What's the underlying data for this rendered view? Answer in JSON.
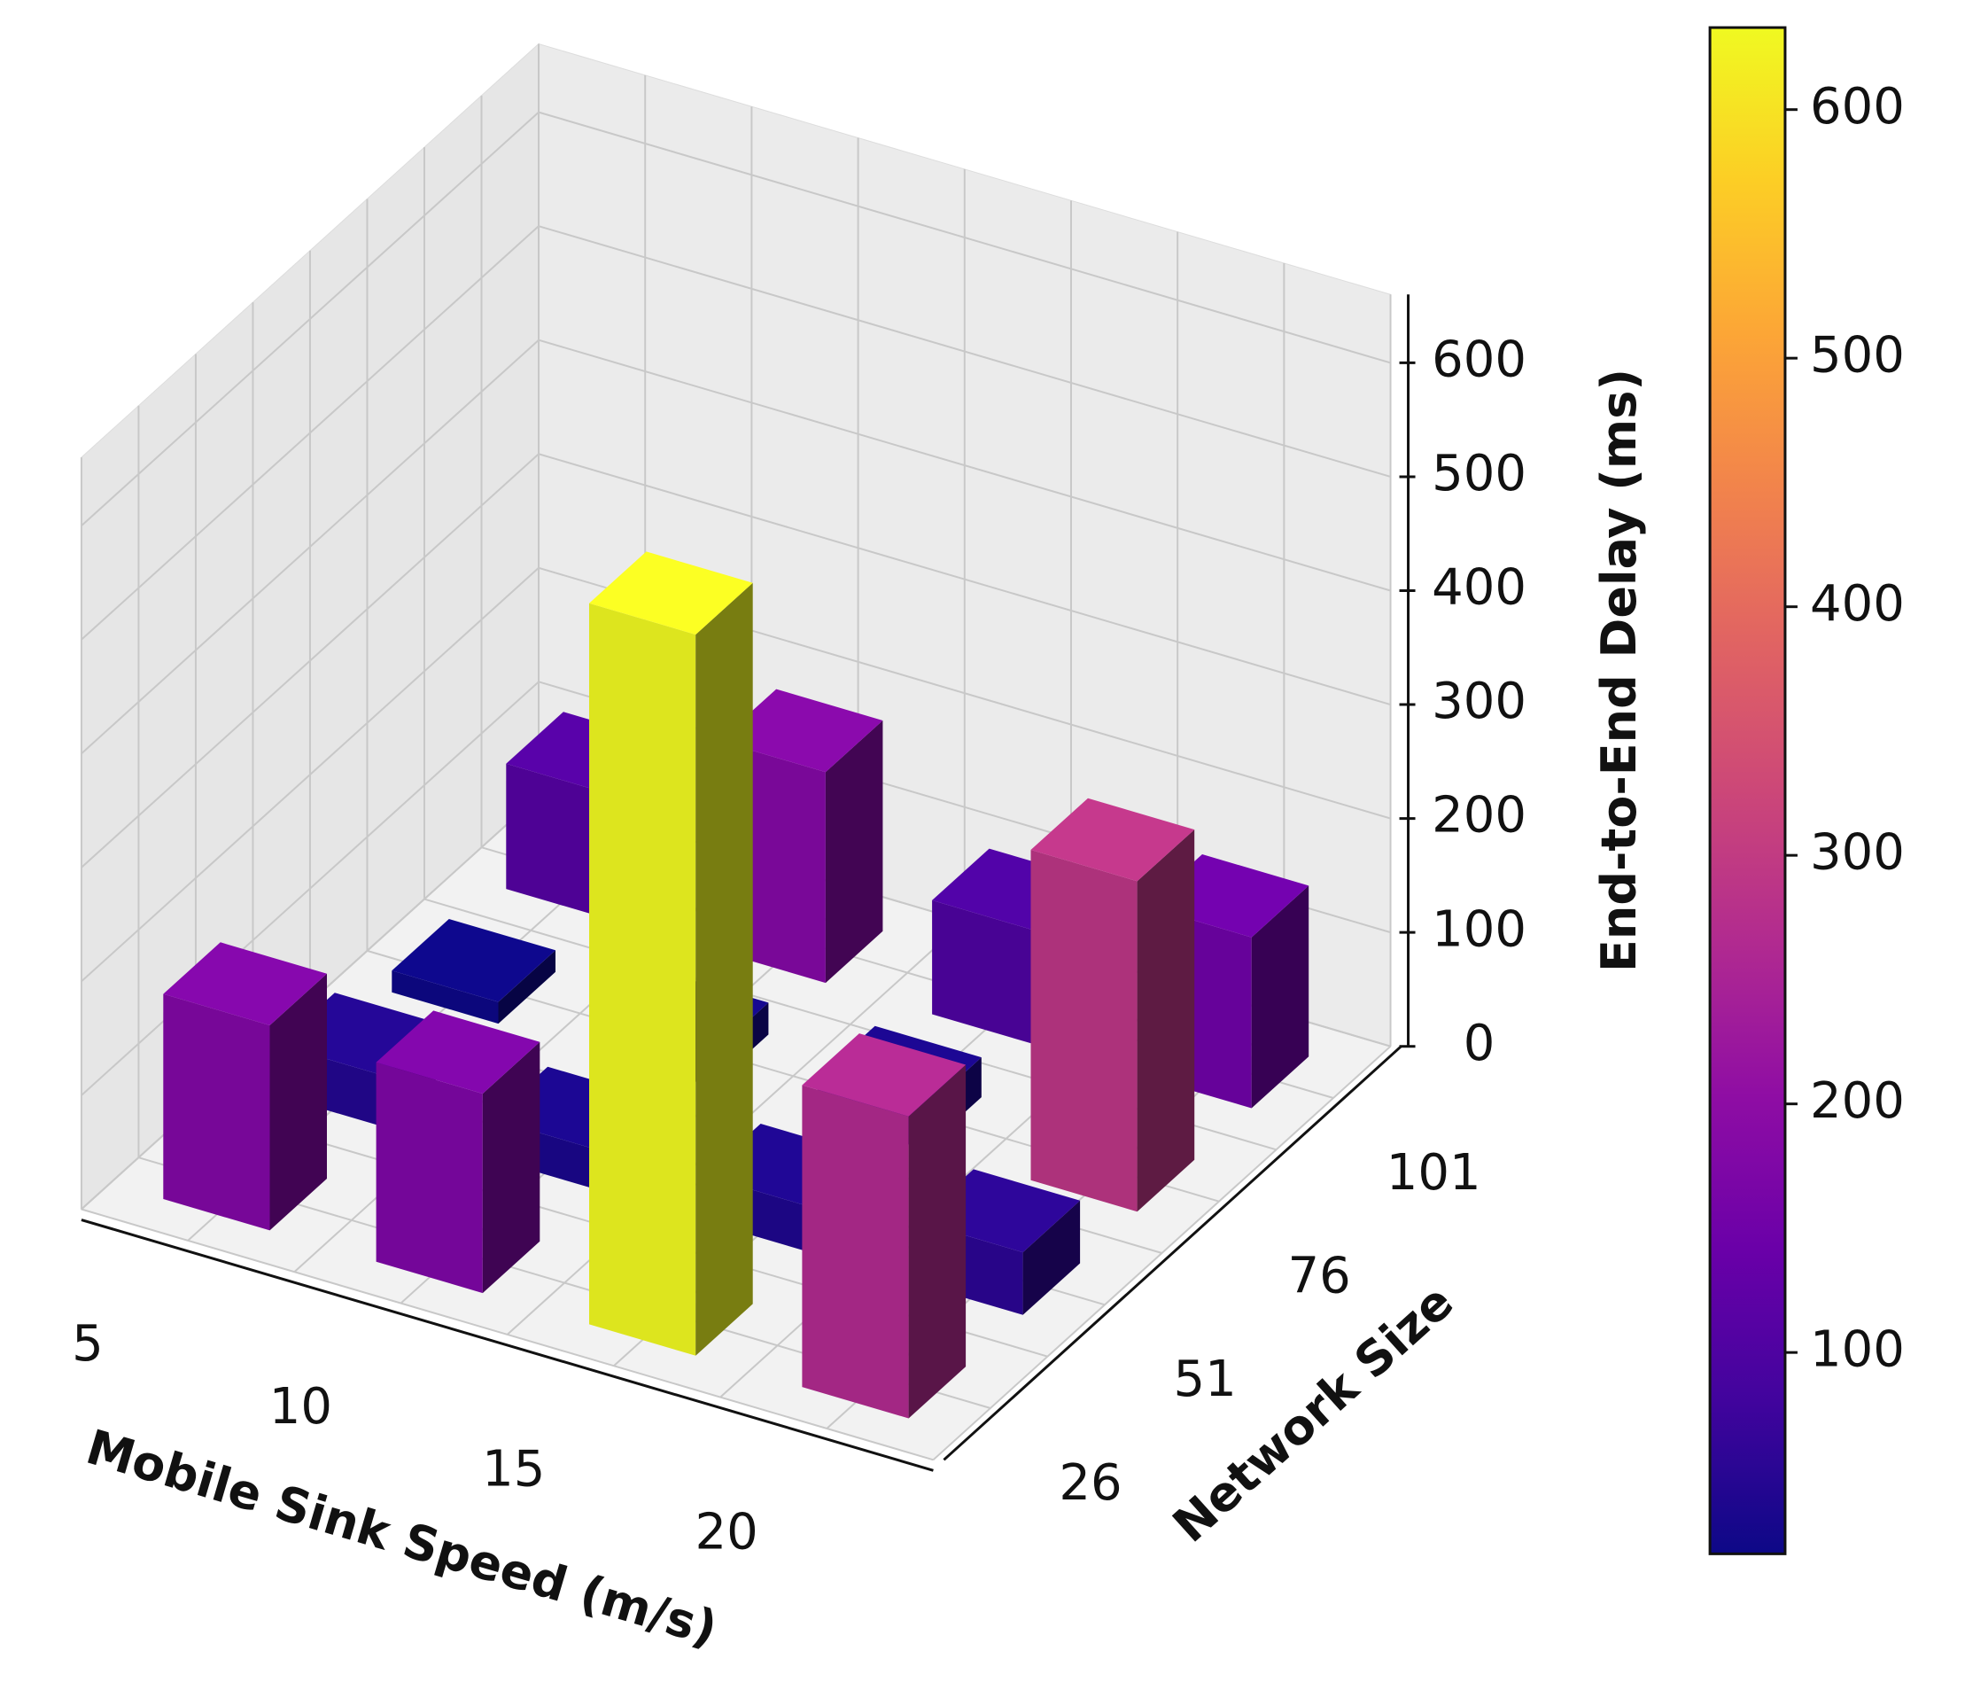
{
  "chart_data": {
    "type": "bar3d",
    "x_label": "Mobile Sink Speed (m/s)",
    "y_label": "Network Size",
    "z_label": "End-to-End Delay (ms)",
    "x_categories": [
      5,
      10,
      15,
      20
    ],
    "y_categories": [
      26,
      51,
      76,
      101
    ],
    "values": [
      [
        180,
        175,
        633,
        265
      ],
      [
        45,
        35,
        40,
        55
      ],
      [
        19,
        28,
        35,
        290
      ],
      [
        110,
        185,
        100,
        150
      ]
    ],
    "zlim": [
      0,
      660
    ],
    "zticks": [
      0,
      100,
      200,
      300,
      400,
      500,
      600
    ],
    "colormap": "plasma",
    "colorbar": {
      "ticks": [
        100,
        200,
        300,
        400,
        500,
        600
      ]
    },
    "grid": true
  }
}
